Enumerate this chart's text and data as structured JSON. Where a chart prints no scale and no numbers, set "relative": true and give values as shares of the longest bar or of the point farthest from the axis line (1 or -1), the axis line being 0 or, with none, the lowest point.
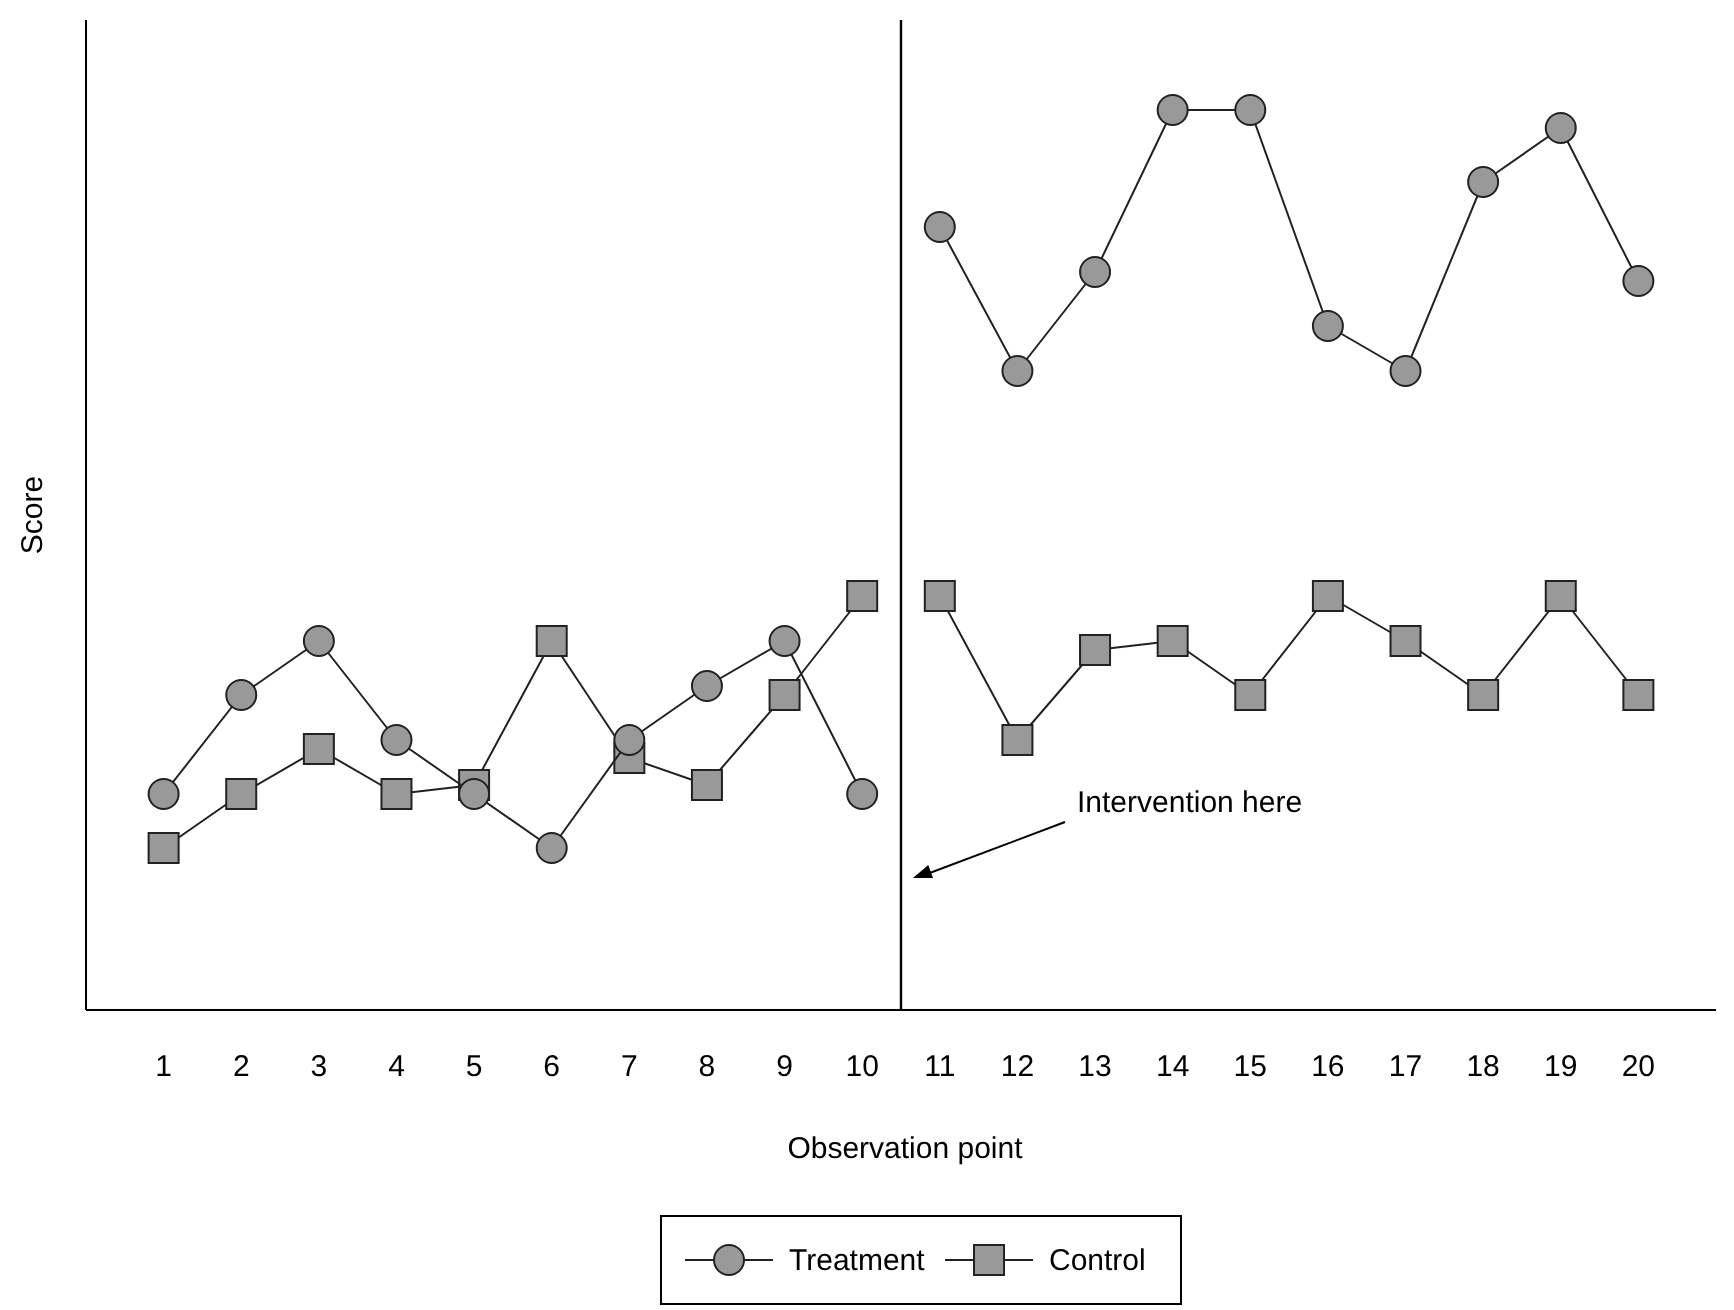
{
  "chart_data": {
    "type": "line",
    "xlabel": "Observation point",
    "ylabel": "Score",
    "relative": true,
    "x": [
      1,
      2,
      3,
      4,
      5,
      6,
      7,
      8,
      9,
      10,
      11,
      12,
      13,
      14,
      15,
      16,
      17,
      18,
      19,
      20
    ],
    "xlim": [
      0,
      21
    ],
    "xticks": [
      1,
      2,
      3,
      4,
      5,
      6,
      7,
      8,
      9,
      10,
      11,
      12,
      13,
      14,
      15,
      16,
      17,
      18,
      19,
      20
    ],
    "series": [
      {
        "name": "Treatment",
        "color": "#999999",
        "marker": "circle",
        "values": [
          0.24,
          0.35,
          0.41,
          0.3,
          0.24,
          0.18,
          0.3,
          0.36,
          0.41,
          0.24,
          0.87,
          0.71,
          0.82,
          1.0,
          1.0,
          0.76,
          0.71,
          0.92,
          0.98,
          0.81
        ]
      },
      {
        "name": "Control",
        "color": "#999999",
        "marker": "square",
        "values": [
          0.18,
          0.24,
          0.29,
          0.24,
          0.25,
          0.41,
          0.28,
          0.25,
          0.35,
          0.46,
          0.46,
          0.3,
          0.4,
          0.41,
          0.35,
          0.46,
          0.41,
          0.35,
          0.46,
          0.35
        ]
      }
    ],
    "ref_lines": [
      {
        "axis": "x",
        "value": 10.5,
        "color": "#000000"
      }
    ],
    "annotations": [
      "Intervention here"
    ],
    "grid": false,
    "legend": "bottom",
    "line_style": "solid"
  }
}
